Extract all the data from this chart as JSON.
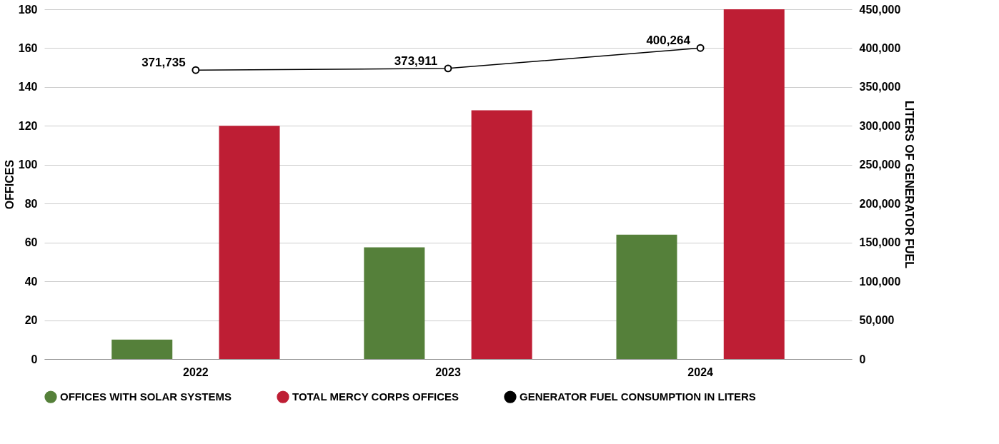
{
  "chart_data": {
    "type": "bar",
    "categories": [
      "2022",
      "2023",
      "2024"
    ],
    "ylabel": "OFFICES",
    "y2label": "LITERS OF GENERATOR FUEL",
    "ylim": [
      0,
      180
    ],
    "yticks": [
      0,
      20,
      40,
      60,
      80,
      100,
      120,
      140,
      160,
      180
    ],
    "y2lim": [
      0,
      450000
    ],
    "y2ticks": [
      0,
      {
        "value": 50000,
        "label": "50,000"
      },
      {
        "value": 100000,
        "label": "100,000"
      },
      {
        "value": 150000,
        "label": "150,000"
      },
      {
        "value": 200000,
        "label": "200,000"
      },
      {
        "value": 250000,
        "label": "250,000"
      },
      {
        "value": 300000,
        "label": "300,000"
      },
      {
        "value": 350000,
        "label": "350,000"
      },
      {
        "value": 400000,
        "label": "400,000"
      },
      {
        "value": 450000,
        "label": "450,000"
      }
    ],
    "grid": "y",
    "legend": "bottom",
    "series": [
      {
        "name": "OFFICES WITH SOLAR SYSTEMS",
        "color": "#55803a",
        "values": [
          10,
          57.5,
          64
        ]
      },
      {
        "name": "TOTAL MERCY CORPS OFFICES",
        "color": "#be1e34",
        "values": [
          120,
          128,
          180
        ]
      },
      {
        "name": "GENERATOR FUEL CONSUMPTION IN LITERS",
        "type": "line",
        "axis": "y2",
        "color": "#000000",
        "marker": "circle",
        "values": [
          371735,
          373911,
          400264
        ],
        "value_labels": [
          "371,735",
          "373,911",
          "400,264"
        ]
      }
    ]
  }
}
